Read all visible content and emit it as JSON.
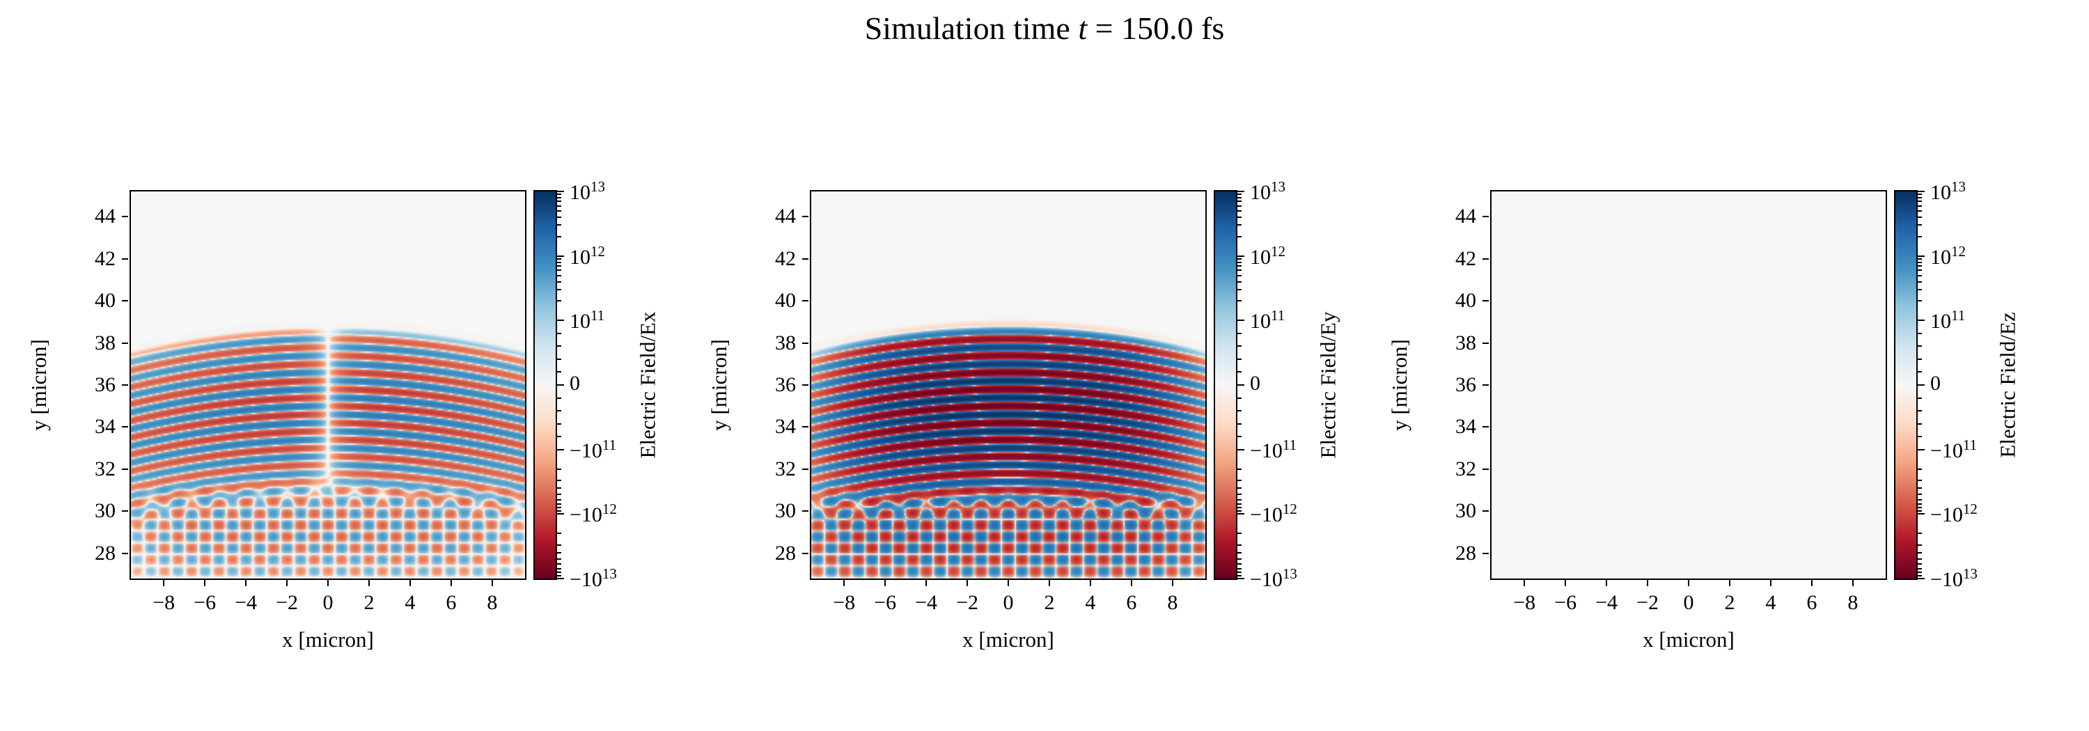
{
  "title": {
    "prefix": "Simulation time ",
    "variable": "t",
    "suffix": " = 150.0 fs"
  },
  "figure": {
    "background": "#ffffff",
    "axes_background": "#f7f7f7",
    "spine_color": "#000000"
  },
  "chart_data": [
    {
      "type": "heatmap",
      "xlabel": "x [micron]",
      "ylabel": "y [micron]",
      "colorbar_label": "Electric Field/Ex",
      "xlim": [
        -9.6,
        9.6
      ],
      "ylim": [
        26.8,
        45.2
      ],
      "xticks": [
        -8,
        -6,
        -4,
        -2,
        0,
        2,
        4,
        6,
        8
      ],
      "yticks": [
        28,
        30,
        32,
        34,
        36,
        38,
        40,
        42,
        44
      ],
      "scale": "symlog",
      "linthresh": 100000000000.0,
      "vmax": 10000000000000.0,
      "colormap": "RdBu_r",
      "colorbar_ticks": [
        {
          "label": "10^{13}",
          "value": 10000000000000.0
        },
        {
          "label": "10^{12}",
          "value": 1000000000000.0
        },
        {
          "label": "10^{11}",
          "value": 100000000000.0
        },
        {
          "label": "0",
          "value": 0
        },
        {
          "label": "-10^{11}",
          "value": -100000000000.0
        },
        {
          "label": "-10^{12}",
          "value": -1000000000000.0
        },
        {
          "label": "-10^{13}",
          "value": -10000000000000.0
        }
      ],
      "field_model": {
        "component": "Ex",
        "wavelength": 0.8,
        "front_y": 38.45,
        "curvature": 0.012,
        "pulse_center_y": 35.0,
        "pulse_sigma": 2.9,
        "rise_y": 31.0,
        "amplitude": 1500000000000.0,
        "x_profile": "odd",
        "x_width": 1.2,
        "lower_amplitude": 600000000000.0,
        "lower_wavelength": 0.85,
        "lower_origin_y": 26.3,
        "lower_angle_cos": 0.77,
        "lower_angle_sin": 0.64,
        "lower_center_y": 29.3,
        "lower_sigma": 2.4
      }
    },
    {
      "type": "heatmap",
      "xlabel": "x [micron]",
      "ylabel": "y [micron]",
      "colorbar_label": "Electric Field/Ey",
      "xlim": [
        -9.6,
        9.6
      ],
      "ylim": [
        26.8,
        45.2
      ],
      "xticks": [
        -8,
        -6,
        -4,
        -2,
        0,
        2,
        4,
        6,
        8
      ],
      "yticks": [
        28,
        30,
        32,
        34,
        36,
        38,
        40,
        42,
        44
      ],
      "scale": "symlog",
      "linthresh": 100000000000.0,
      "vmax": 10000000000000.0,
      "colormap": "RdBu_r",
      "colorbar_ticks": [
        {
          "label": "10^{13}",
          "value": 10000000000000.0
        },
        {
          "label": "10^{12}",
          "value": 1000000000000.0
        },
        {
          "label": "10^{11}",
          "value": 100000000000.0
        },
        {
          "label": "0",
          "value": 0
        },
        {
          "label": "-10^{11}",
          "value": -100000000000.0
        },
        {
          "label": "-10^{12}",
          "value": -1000000000000.0
        },
        {
          "label": "-10^{13}",
          "value": -10000000000000.0
        }
      ],
      "field_model": {
        "component": "Ey",
        "wavelength": 0.8,
        "front_y": 38.45,
        "curvature": 0.012,
        "pulse_center_y": 35.0,
        "pulse_sigma": 3.0,
        "rise_y": 30.9,
        "amplitude": 9000000000000.0,
        "x_profile": "flattop",
        "x_width": 7.6,
        "lower_amplitude": 2200000000000.0,
        "lower_wavelength": 0.85,
        "lower_origin_y": 26.3,
        "lower_angle_cos": 0.77,
        "lower_angle_sin": 0.64,
        "lower_center_y": 29.0,
        "lower_sigma": 2.2
      }
    },
    {
      "type": "heatmap",
      "xlabel": "x [micron]",
      "ylabel": "y [micron]",
      "colorbar_label": "Electric Field/Ez",
      "xlim": [
        -9.6,
        9.6
      ],
      "ylim": [
        26.8,
        45.2
      ],
      "xticks": [
        -8,
        -6,
        -4,
        -2,
        0,
        2,
        4,
        6,
        8
      ],
      "yticks": [
        28,
        30,
        32,
        34,
        36,
        38,
        40,
        42,
        44
      ],
      "scale": "symlog",
      "linthresh": 100000000000.0,
      "vmax": 10000000000000.0,
      "colormap": "RdBu_r",
      "colorbar_ticks": [
        {
          "label": "10^{13}",
          "value": 10000000000000.0
        },
        {
          "label": "10^{12}",
          "value": 1000000000000.0
        },
        {
          "label": "10^{11}",
          "value": 100000000000.0
        },
        {
          "label": "0",
          "value": 0
        },
        {
          "label": "-10^{11}",
          "value": -100000000000.0
        },
        {
          "label": "-10^{12}",
          "value": -1000000000000.0
        },
        {
          "label": "-10^{13}",
          "value": -10000000000000.0
        }
      ],
      "field_model": {
        "component": "Ez",
        "wavelength": 0.8,
        "front_y": 38.45,
        "curvature": 0.012,
        "pulse_center_y": 35.0,
        "pulse_sigma": 3.0,
        "rise_y": 30.9,
        "amplitude": 0,
        "x_profile": "flattop",
        "x_width": 7.6,
        "lower_amplitude": 0,
        "lower_wavelength": 0.85,
        "lower_origin_y": 26.3,
        "lower_angle_cos": 0.77,
        "lower_angle_sin": 0.64,
        "lower_center_y": 29.0,
        "lower_sigma": 2.2
      }
    }
  ]
}
